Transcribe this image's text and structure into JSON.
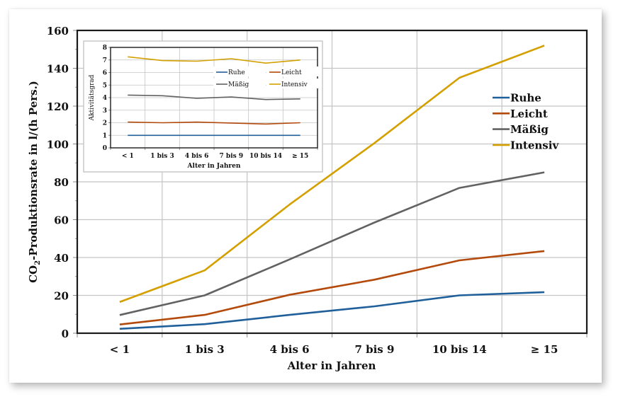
{
  "chart_data": [
    {
      "type": "line",
      "title": "",
      "xlabel": "Alter in Jahren",
      "ylabel": "CO₂-Produktionsrate in l/(h Pers.)",
      "ylabel_parts": {
        "before": "CO",
        "sub": "2",
        "after": "-Produktionsrate in l/(h Pers.)"
      },
      "categories": [
        "< 1",
        "1 bis 3",
        "4 bis 6",
        "7 bis 9",
        "10 bis 14",
        "≥ 15"
      ],
      "ylim": [
        0,
        160
      ],
      "yticks": [
        0,
        20,
        40,
        60,
        80,
        100,
        120,
        140,
        160
      ],
      "grid": true,
      "legend_position": "right-center",
      "series": [
        {
          "name": "Ruhe",
          "color": "#1f5f9a",
          "values": [
            2.3,
            4.8,
            9.7,
            14.2,
            20.0,
            21.7
          ]
        },
        {
          "name": "Leicht",
          "color": "#b34a0c",
          "values": [
            4.6,
            9.7,
            20.3,
            28.3,
            38.5,
            43.4
          ]
        },
        {
          "name": "Mäßig",
          "color": "#626262",
          "values": [
            9.6,
            20.0,
            39.0,
            58.5,
            76.8,
            85.0
          ]
        },
        {
          "name": "Intensiv",
          "color": "#d4a000",
          "values": [
            16.5,
            33.2,
            68.0,
            100.5,
            135.0,
            152.0
          ]
        }
      ]
    },
    {
      "type": "line",
      "title": "",
      "xlabel": "Alter in Jahren",
      "ylabel": "Aktivitätsgrad",
      "categories": [
        "< 1",
        "1 bis 3",
        "4 bis 6",
        "7 bis 9",
        "10 bis 14",
        "≥ 15"
      ],
      "ylim": [
        0,
        8
      ],
      "yticks": [
        0,
        1,
        2,
        3,
        4,
        5,
        6,
        7,
        8
      ],
      "grid": true,
      "legend_position": "upper-right, 2 columns",
      "series": [
        {
          "name": "Ruhe",
          "color": "#1f5f9a",
          "values": [
            1.0,
            1.0,
            1.0,
            1.0,
            1.0,
            1.0
          ]
        },
        {
          "name": "Leicht",
          "color": "#b34a0c",
          "values": [
            2.05,
            2.0,
            2.05,
            1.98,
            1.9,
            2.0
          ]
        },
        {
          "name": "Mäßig",
          "color": "#626262",
          "values": [
            4.2,
            4.15,
            3.95,
            4.05,
            3.85,
            3.9
          ]
        },
        {
          "name": "Intensiv",
          "color": "#d4a000",
          "values": [
            7.25,
            6.95,
            6.9,
            7.1,
            6.75,
            7.0
          ]
        }
      ]
    }
  ]
}
